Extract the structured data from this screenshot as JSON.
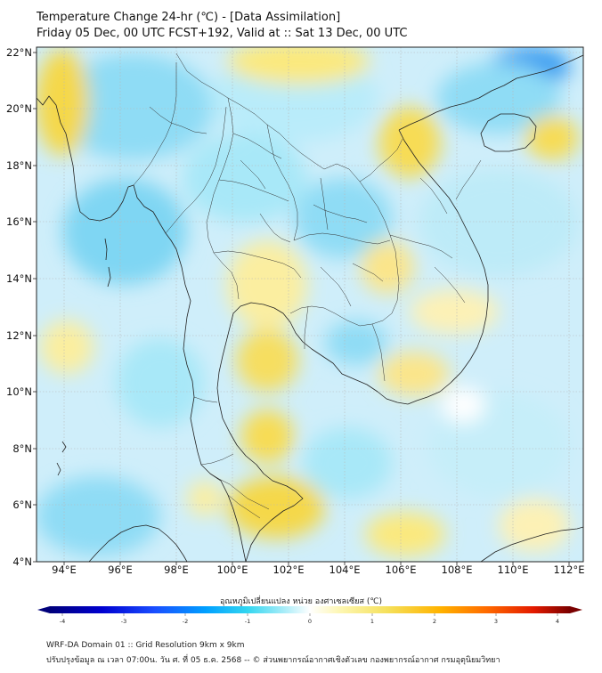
{
  "title": {
    "line1": "Temperature Change 24-hr (℃) - [Data Assimilation]",
    "line2": "Friday 05 Dec, 00 UTC FCST+192, Valid at :: Sat 13 Dec, 00 UTC"
  },
  "map": {
    "lat_labels": [
      "22°N",
      "20°N",
      "18°N",
      "16°N",
      "14°N",
      "12°N",
      "10°N",
      "8°N",
      "6°N",
      "4°N"
    ],
    "lon_labels": [
      "94°E",
      "96°E",
      "98°E",
      "100°E",
      "102°E",
      "104°E",
      "106°E",
      "108°E",
      "110°E",
      "112°E"
    ],
    "extent": {
      "lon_min": 93,
      "lon_max": 112.5,
      "lat_min": 4,
      "lat_max": 22.2
    }
  },
  "colorbar": {
    "title": "อุณหภูมิเปลี่ยนแปลง หน่วย องศาเซลเซียส (℃)",
    "ticks": [
      "-4",
      "-3",
      "-2",
      "-1",
      "0",
      "1",
      "2",
      "3",
      "4"
    ],
    "colors": [
      "#00007a",
      "#0000d0",
      "#1a4dff",
      "#00a0ff",
      "#33d6f0",
      "#a8ecf8",
      "#ffffff",
      "#fdf6b0",
      "#f5e05a",
      "#ffb300",
      "#ff6a00",
      "#e31a00",
      "#7a0000"
    ]
  },
  "footer": {
    "line1": "WRF-DA Domain 01 :: Grid Resolution 9km x 9km",
    "line2": "ปรับปรุงข้อมูล ณ เวลา 07:00น. วัน ศ. ที่ 05 ธ.ค. 2568 -- © ส่วนพยากรณ์อากาศเชิงตัวเลข กองพยากรณ์อากาศ กรมอุตุนิยมวิทยา"
  }
}
